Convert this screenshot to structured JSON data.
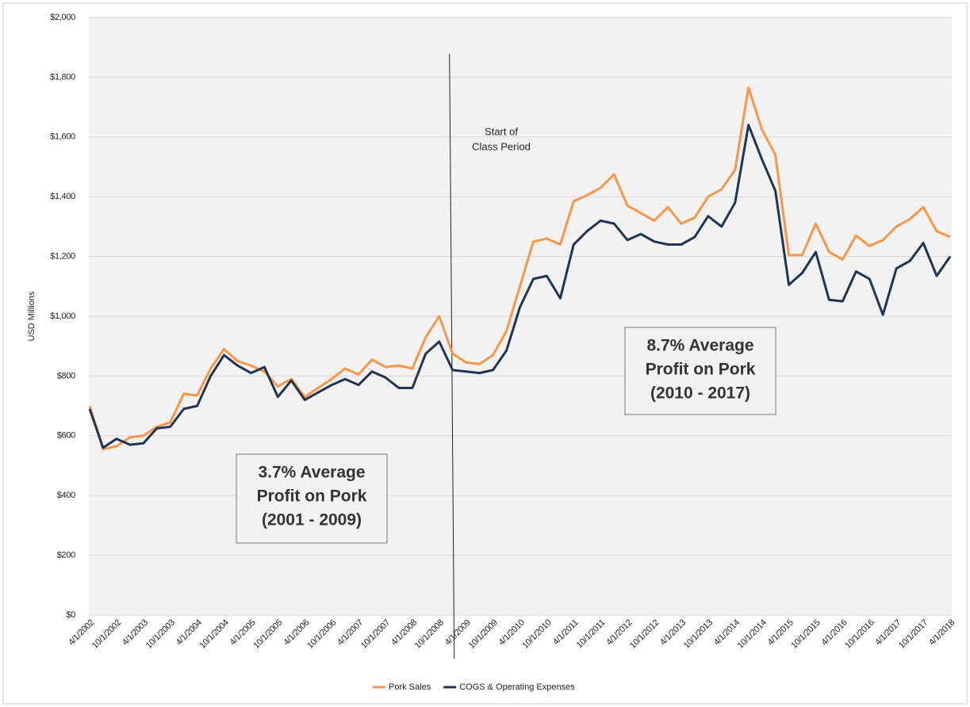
{
  "chart_data": {
    "type": "line",
    "y_label": "USD Millions",
    "categories": [
      "4/1/2002",
      null,
      "10/1/2002",
      null,
      "4/1/2003",
      null,
      "10/1/2003",
      null,
      "4/1/2004",
      null,
      "10/1/2004",
      null,
      "4/1/2005",
      null,
      "10/1/2005",
      null,
      "4/1/2006",
      null,
      "10/1/2006",
      null,
      "4/1/2007",
      null,
      "10/1/2007",
      null,
      "4/1/2008",
      null,
      "10/1/2008",
      null,
      "4/1/2009",
      null,
      "10/1/2009",
      null,
      "4/1/2010",
      null,
      "10/1/2010",
      null,
      "4/1/2011",
      null,
      "10/1/2011",
      null,
      "4/1/2012",
      null,
      "10/1/2012",
      null,
      "4/1/2013",
      null,
      "10/1/2013",
      null,
      "4/1/2014",
      null,
      "10/1/2014",
      null,
      "4/1/2015",
      null,
      "10/1/2015",
      null,
      "4/1/2016",
      null,
      "10/1/2016",
      null,
      "4/1/2017",
      null,
      "10/1/2017",
      null,
      "4/1/2018"
    ],
    "series": [
      {
        "name": "Pork Sales",
        "color": "#f79646",
        "values": [
          700,
          555,
          565,
          595,
          600,
          630,
          645,
          740,
          735,
          825,
          890,
          850,
          835,
          815,
          765,
          790,
          730,
          760,
          790,
          825,
          805,
          855,
          830,
          835,
          825,
          930,
          1000,
          875,
          845,
          840,
          870,
          950,
          1100,
          1250,
          1260,
          1240,
          1385,
          1405,
          1430,
          1475,
          1370,
          1345,
          1320,
          1365,
          1310,
          1330,
          1400,
          1425,
          1490,
          1765,
          1625,
          1540,
          1205,
          1205,
          1310,
          1215,
          1190,
          1270,
          1235,
          1255,
          1300,
          1325,
          1365,
          1285,
          1265
        ]
      },
      {
        "name": "COGS & Operating Expenses",
        "color": "#1f3552",
        "values": [
          690,
          560,
          590,
          570,
          575,
          625,
          630,
          690,
          700,
          800,
          870,
          835,
          810,
          830,
          730,
          785,
          720,
          745,
          770,
          790,
          770,
          815,
          795,
          760,
          760,
          875,
          915,
          820,
          815,
          810,
          820,
          885,
          1030,
          1125,
          1135,
          1060,
          1240,
          1285,
          1320,
          1310,
          1255,
          1275,
          1250,
          1240,
          1240,
          1265,
          1335,
          1300,
          1380,
          1640,
          1525,
          1420,
          1105,
          1145,
          1215,
          1055,
          1050,
          1150,
          1125,
          1005,
          1160,
          1185,
          1245,
          1135,
          1200
        ]
      }
    ],
    "ylim": [
      0,
      2000
    ],
    "yticks": [
      {
        "value": 0,
        "label": "$0"
      },
      {
        "value": 200,
        "label": "$200"
      },
      {
        "value": 400,
        "label": "$400"
      },
      {
        "value": 600,
        "label": "$600"
      },
      {
        "value": 800,
        "label": "$800"
      },
      {
        "value": 1000,
        "label": "$1,000"
      },
      {
        "value": 1200,
        "label": "$1,200"
      },
      {
        "value": 1400,
        "label": "$1,400"
      },
      {
        "value": 1600,
        "label": "$1,600"
      },
      {
        "value": 1800,
        "label": "$1,800"
      },
      {
        "value": 2000,
        "label": "$2,000"
      }
    ],
    "grid": true,
    "legend": "bottom",
    "annotations": [
      {
        "lines": [
          "Start of",
          "Class Period"
        ]
      },
      {
        "lines": [
          "3.7% Average",
          "Profit on Pork",
          "(2001 - 2009)"
        ]
      },
      {
        "lines": [
          "8.7% Average",
          "Profit on Pork",
          "(2010 - 2017)"
        ]
      }
    ]
  }
}
